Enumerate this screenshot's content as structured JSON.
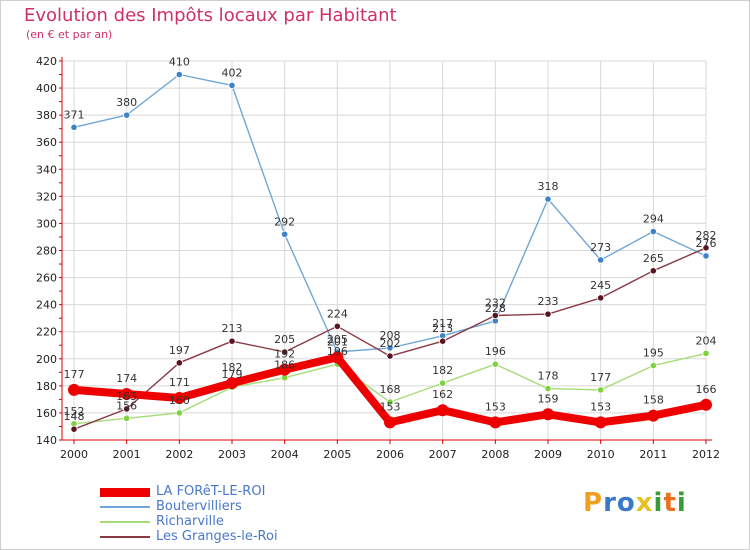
{
  "header": {
    "title": "Evolution des Impôts locaux par Habitant",
    "subtitle": "(en € et par an)"
  },
  "colors": {
    "title": "#d0306a",
    "axis": "#d40000",
    "grid": "#d8d8d8",
    "legend_text": "#4a78c8"
  },
  "chart_data": {
    "type": "line",
    "title": "Evolution des Impôts locaux par Habitant",
    "subtitle": "(en € et par an)",
    "xlabel": "",
    "ylabel": "",
    "x": [
      "2000",
      "2001",
      "2002",
      "2003",
      "2004",
      "2005",
      "2006",
      "2007",
      "2008",
      "2009",
      "2010",
      "2011",
      "2012"
    ],
    "ylim": [
      140,
      420
    ],
    "yticks": [
      140,
      160,
      180,
      200,
      220,
      240,
      260,
      280,
      300,
      320,
      340,
      360,
      380,
      400,
      420
    ],
    "grid": true,
    "legend_position": "bottom-left",
    "series": [
      {
        "name": "LA FORêT-LE-ROI",
        "color": "#ee0000",
        "emphasis": true,
        "values": [
          177,
          174,
          171,
          182,
          192,
          201,
          153,
          162,
          153,
          159,
          153,
          158,
          166
        ],
        "labels": [
          "177",
          "174",
          "171",
          "182",
          "192",
          "201",
          "153",
          "162",
          "153",
          "159",
          "153",
          "158",
          "166"
        ]
      },
      {
        "name": "Boutervilliers",
        "color": "#6fa6d6",
        "marker_color": "#3e82c8",
        "values": [
          371,
          380,
          410,
          402,
          292,
          205,
          208,
          217,
          228,
          318,
          273,
          294,
          276
        ],
        "labels": [
          "371",
          "380",
          "410",
          "402",
          "292",
          "205",
          "208",
          "217",
          "228",
          "318",
          "273",
          "294",
          "276"
        ]
      },
      {
        "name": "Richarville",
        "color": "#a6dc78",
        "marker_color": "#7ed23c",
        "values": [
          152,
          156,
          160,
          179,
          186,
          196,
          168,
          182,
          196,
          178,
          177,
          195,
          204
        ],
        "labels": [
          "152",
          "156",
          "160",
          "179",
          "186",
          "196",
          "168",
          "182",
          "196",
          "178",
          "177",
          "195",
          "204"
        ]
      },
      {
        "name": "Les Granges-le-Roi",
        "color": "#8a3a44",
        "marker_color": "#5a1420",
        "values": [
          148,
          163,
          197,
          213,
          205,
          224,
          202,
          213,
          232,
          233,
          245,
          265,
          282
        ],
        "labels": [
          "148",
          "163",
          "197",
          "213",
          "205",
          "224",
          "202",
          "213",
          "232",
          "233",
          "245",
          "265",
          "282"
        ]
      }
    ]
  },
  "legend": {
    "items": [
      {
        "label": "LA FORêT-LE-ROI",
        "color": "#ee0000"
      },
      {
        "label": "Boutervilliers",
        "color": "#6fa6d6"
      },
      {
        "label": "Richarville",
        "color": "#a6dc78"
      },
      {
        "label": "Les Granges-le-Roi",
        "color": "#8a3a44"
      }
    ]
  },
  "logo": {
    "text": "Proxiti",
    "letters": [
      {
        "ch": "P",
        "color": "#f0a020"
      },
      {
        "ch": "r",
        "color": "#3a78c8"
      },
      {
        "ch": "o",
        "color": "#3a78c8"
      },
      {
        "ch": "x",
        "color": "#e8c020"
      },
      {
        "ch": "i",
        "color": "#3a9a3a"
      },
      {
        "ch": "t",
        "color": "#e87020"
      },
      {
        "ch": "i",
        "color": "#3a9a3a"
      }
    ]
  }
}
